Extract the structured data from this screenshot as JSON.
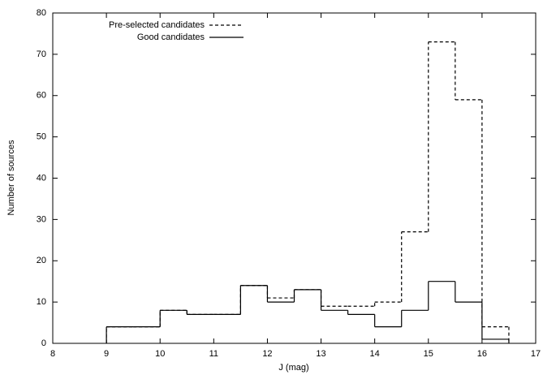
{
  "chart_data": {
    "type": "histogram",
    "xlabel": "J (mag)",
    "ylabel": "Number of sources",
    "bins": [
      9,
      9.5,
      10,
      10.5,
      11,
      11.5,
      12,
      12.5,
      13,
      13.5,
      14,
      14.5,
      15,
      15.5,
      16,
      16.5
    ],
    "series": [
      {
        "name": "Pre-selected candidates",
        "color": "#000000",
        "line_style": "dashed",
        "values": [
          4,
          4,
          8,
          7,
          7,
          14,
          11,
          13,
          9,
          9,
          10,
          27,
          73,
          59,
          4
        ]
      },
      {
        "name": "Good candidates",
        "color": "#000000",
        "line_style": "solid",
        "values": [
          4,
          4,
          8,
          7,
          7,
          14,
          10,
          13,
          8,
          7,
          4,
          8,
          15,
          10,
          1
        ]
      }
    ],
    "xlim": [
      8,
      17
    ],
    "xticks": [
      8,
      9,
      10,
      11,
      12,
      13,
      14,
      15,
      16,
      17
    ],
    "ylim": [
      0,
      80
    ],
    "yticks": [
      0,
      10,
      20,
      30,
      40,
      50,
      60,
      70,
      80
    ],
    "legend": "top-left"
  }
}
